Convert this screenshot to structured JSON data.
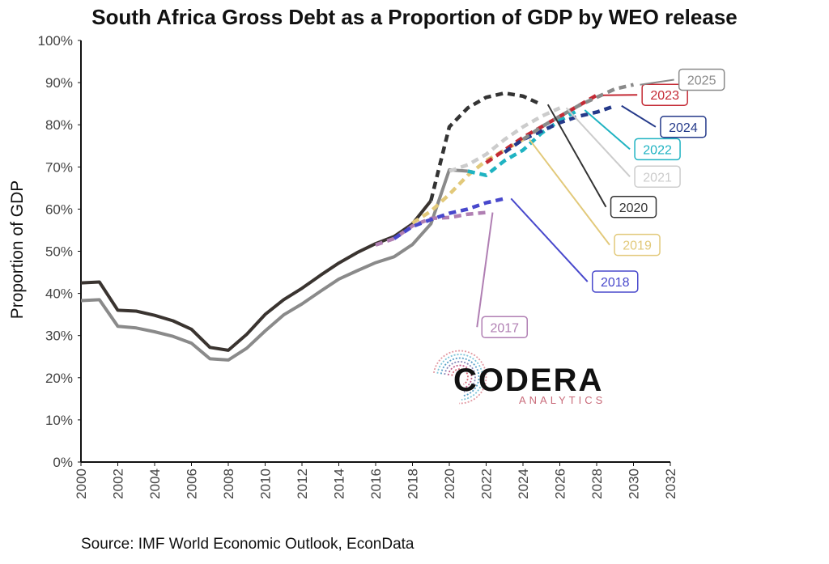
{
  "title": "South Africa Gross Debt as a Proportion of GDP by WEO release",
  "source": "Source: IMF World Economic Outlook, EconData",
  "logo": {
    "word": "CODERA",
    "sub": "ANALYTICS"
  },
  "chart_data": {
    "type": "line",
    "title": "South Africa Gross Debt as a Proportion of GDP by WEO release",
    "xlabel": "",
    "ylabel": "Proportion of GDP",
    "xlim": [
      2000,
      2032
    ],
    "ylim": [
      0,
      100
    ],
    "x_ticks": [
      "2000",
      "2002",
      "2004",
      "2006",
      "2008",
      "2010",
      "2012",
      "2014",
      "2016",
      "2018",
      "2020",
      "2022",
      "2024",
      "2026",
      "2028",
      "2030",
      "2032"
    ],
    "y_ticks": [
      "0%",
      "10%",
      "20%",
      "30%",
      "40%",
      "50%",
      "60%",
      "70%",
      "80%",
      "90%",
      "100%"
    ],
    "grid": false,
    "series": [
      {
        "name": "2017",
        "color": "#b07fb3",
        "style": "dashed",
        "x": [
          2016,
          2017,
          2018,
          2019,
          2020,
          2021,
          2022
        ],
        "y": [
          51.5,
          53.0,
          56.0,
          57.8,
          58.0,
          58.8,
          59.2
        ],
        "label_value": [
          2023,
          32
        ]
      },
      {
        "name": "2018",
        "color": "#4848cc",
        "style": "dashed",
        "x": [
          2017,
          2018,
          2019,
          2020,
          2021,
          2022,
          2023
        ],
        "y": [
          53.0,
          55.9,
          57.5,
          59.0,
          60.0,
          61.5,
          62.5
        ],
        "label_value": [
          2029,
          42.8
        ]
      },
      {
        "name": "2019",
        "color": "#e2c97a",
        "style": "dashed",
        "x": [
          2018,
          2019,
          2020,
          2021,
          2022,
          2023,
          2024
        ],
        "y": [
          56.7,
          59.5,
          63.5,
          68.0,
          71.5,
          74.0,
          76.5
        ],
        "label_value": [
          2030.2,
          51.5
        ]
      },
      {
        "name": "2020",
        "color": "#333333",
        "style": "dashed",
        "x": [
          2019,
          2020,
          2021,
          2022,
          2023,
          2024,
          2025
        ],
        "y": [
          62.0,
          79.5,
          84.0,
          86.5,
          87.5,
          86.8,
          84.8
        ],
        "label_value": [
          2030,
          60.5
        ]
      },
      {
        "name": "2021",
        "color": "#cccccc",
        "style": "dashed",
        "x": [
          2020,
          2021,
          2022,
          2023,
          2024,
          2025,
          2026
        ],
        "y": [
          69.0,
          70.5,
          73.0,
          76.5,
          79.5,
          82.0,
          84.0
        ],
        "label_value": [
          2031.3,
          67.7
        ]
      },
      {
        "name": "2022",
        "color": "#1fb3c2",
        "style": "dashed",
        "x": [
          2021,
          2022,
          2023,
          2024,
          2025,
          2026,
          2027
        ],
        "y": [
          69.0,
          68.0,
          71.5,
          74.0,
          78.0,
          81.0,
          83.5
        ],
        "label_value": [
          2031.3,
          74.2
        ]
      },
      {
        "name": "2023",
        "color": "#c42a35",
        "style": "dashed",
        "x": [
          2022,
          2023,
          2024,
          2025,
          2026,
          2027,
          2028
        ],
        "y": [
          71.0,
          74.0,
          77.0,
          79.5,
          82.0,
          84.5,
          87.0
        ],
        "label_value": [
          2031.7,
          87.1
        ]
      },
      {
        "name": "2024",
        "color": "#253a8a",
        "style": "dashed",
        "x": [
          2023,
          2024,
          2025,
          2026,
          2027,
          2028,
          2029
        ],
        "y": [
          73.5,
          76.5,
          78.5,
          80.5,
          82.0,
          83.0,
          84.5
        ],
        "label_value": [
          2032.7,
          79.5
        ]
      },
      {
        "name": "2025",
        "color": "#8a8a8a",
        "style": "dashed",
        "x": [
          2024,
          2025,
          2026,
          2027,
          2028,
          2029,
          2030
        ],
        "y": [
          76.5,
          79.5,
          82.0,
          84.5,
          86.5,
          88.5,
          89.5
        ],
        "label_value": [
          2033.7,
          90.7
        ]
      },
      {
        "name": "",
        "color": "#3a3430",
        "style": "solid",
        "x": [
          2000,
          2001,
          2002,
          2003,
          2004,
          2005,
          2006,
          2007,
          2008,
          2009,
          2010,
          2011,
          2012,
          2013,
          2014,
          2015,
          2016,
          2017,
          2018,
          2019
        ],
        "y": [
          42.5,
          42.7,
          36.0,
          35.8,
          34.8,
          33.5,
          31.5,
          27.2,
          26.5,
          30.3,
          35.0,
          38.5,
          41.2,
          44.3,
          47.2,
          49.7,
          51.8,
          53.5,
          56.5,
          62.0
        ]
      },
      {
        "name": "",
        "color": "#8a8a8a",
        "style": "solid",
        "x": [
          2000,
          2001,
          2002,
          2003,
          2004,
          2005,
          2006,
          2007,
          2008,
          2009,
          2010,
          2011,
          2012,
          2013,
          2014,
          2015,
          2016,
          2017,
          2018,
          2019,
          2020,
          2021
        ],
        "y": [
          38.3,
          38.5,
          32.2,
          31.8,
          30.9,
          29.8,
          28.2,
          24.5,
          24.2,
          27.0,
          31.1,
          34.9,
          37.5,
          40.5,
          43.4,
          45.4,
          47.3,
          48.7,
          51.6,
          56.5,
          69.3,
          69.0
        ]
      }
    ]
  }
}
